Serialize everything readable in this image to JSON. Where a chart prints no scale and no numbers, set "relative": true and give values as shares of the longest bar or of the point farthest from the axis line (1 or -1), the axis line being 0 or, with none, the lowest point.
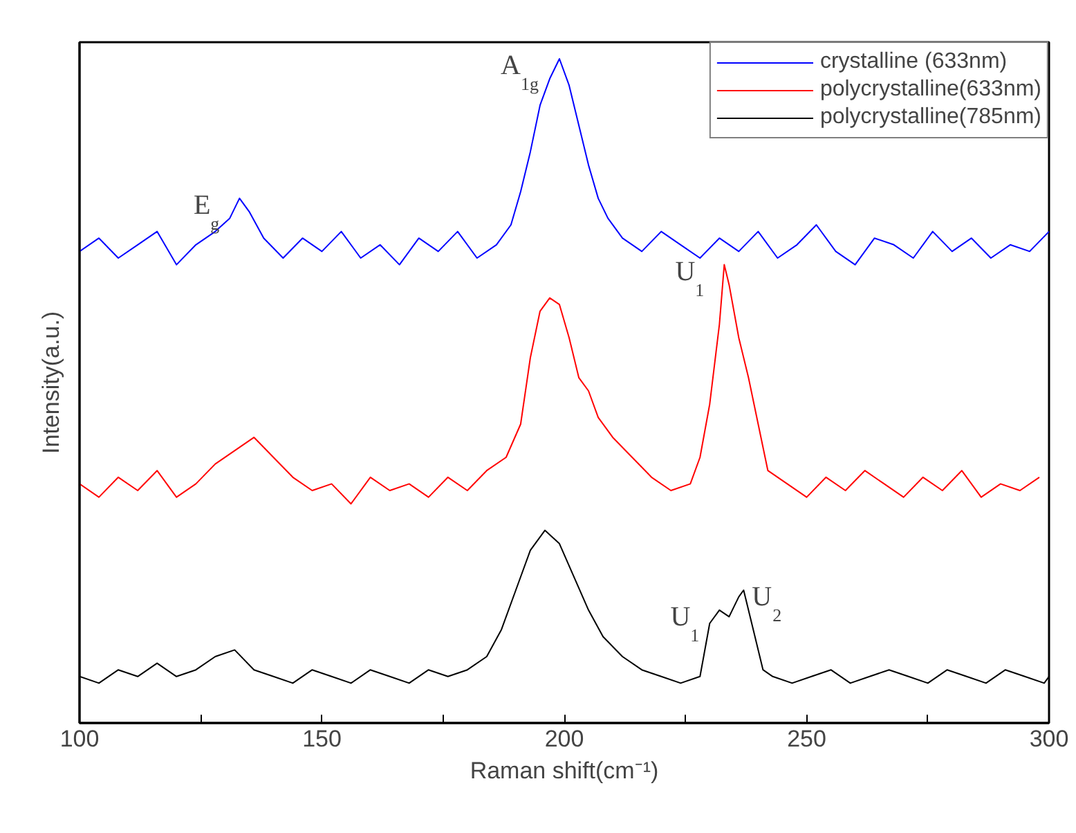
{
  "chart_data": {
    "type": "line",
    "relative": true,
    "xlabel": "Raman shift(cm⁻¹)",
    "ylabel": "Intensity(a.u.)",
    "xlim": [
      100,
      300
    ],
    "xticks": [
      100,
      {
        "value": 125,
        "label": null
      },
      150,
      {
        "value": 175,
        "label": null
      },
      200,
      {
        "value": 225,
        "label": null
      },
      250,
      {
        "value": 275,
        "label": null
      },
      300
    ],
    "grid": false,
    "legend": "top right",
    "line_style": "solid",
    "marker": "none",
    "series": [
      {
        "name": "crystalline (633nm)",
        "color": "#0000ff",
        "x": [
          100,
          104,
          108,
          112,
          116,
          120,
          124,
          128,
          131,
          133,
          135,
          138,
          142,
          146,
          150,
          154,
          158,
          162,
          166,
          170,
          174,
          178,
          182,
          186,
          189,
          191,
          193,
          195,
          197,
          199,
          201,
          203,
          205,
          207,
          209,
          212,
          216,
          220,
          224,
          228,
          232,
          236,
          240,
          244,
          248,
          252,
          256,
          260,
          264,
          268,
          272,
          276,
          280,
          284,
          288,
          292,
          296,
          300
        ],
        "values": [
          0.71,
          0.73,
          0.7,
          0.72,
          0.74,
          0.69,
          0.72,
          0.74,
          0.76,
          0.79,
          0.77,
          0.73,
          0.7,
          0.73,
          0.71,
          0.74,
          0.7,
          0.72,
          0.69,
          0.73,
          0.71,
          0.74,
          0.7,
          0.72,
          0.75,
          0.8,
          0.86,
          0.93,
          0.97,
          1.0,
          0.96,
          0.9,
          0.84,
          0.79,
          0.76,
          0.73,
          0.71,
          0.74,
          0.72,
          0.7,
          0.73,
          0.71,
          0.74,
          0.7,
          0.72,
          0.75,
          0.71,
          0.69,
          0.73,
          0.72,
          0.7,
          0.74,
          0.71,
          0.73,
          0.7,
          0.72,
          0.71,
          0.74
        ]
      },
      {
        "name": "polycrystalline(633nm)",
        "color": "#ff0000",
        "x": [
          100,
          104,
          108,
          112,
          116,
          120,
          124,
          128,
          132,
          136,
          140,
          144,
          148,
          152,
          156,
          160,
          164,
          168,
          172,
          176,
          180,
          184,
          188,
          191,
          193,
          195,
          197,
          199,
          201,
          203,
          205,
          207,
          210,
          214,
          218,
          222,
          226,
          228,
          230,
          232,
          233,
          234,
          236,
          238,
          240,
          242,
          246,
          250,
          254,
          258,
          262,
          266,
          270,
          274,
          278,
          282,
          286,
          290,
          294,
          298
        ],
        "values": [
          0.36,
          0.34,
          0.37,
          0.35,
          0.38,
          0.34,
          0.36,
          0.39,
          0.41,
          0.43,
          0.4,
          0.37,
          0.35,
          0.36,
          0.33,
          0.37,
          0.35,
          0.36,
          0.34,
          0.37,
          0.35,
          0.38,
          0.4,
          0.45,
          0.55,
          0.62,
          0.64,
          0.63,
          0.58,
          0.52,
          0.5,
          0.46,
          0.43,
          0.4,
          0.37,
          0.35,
          0.36,
          0.4,
          0.48,
          0.6,
          0.69,
          0.66,
          0.58,
          0.52,
          0.45,
          0.38,
          0.36,
          0.34,
          0.37,
          0.35,
          0.38,
          0.36,
          0.34,
          0.37,
          0.35,
          0.38,
          0.34,
          0.36,
          0.35,
          0.37
        ]
      },
      {
        "name": "polycrystalline(785nm)",
        "color": "#000000",
        "x": [
          100,
          104,
          108,
          112,
          116,
          120,
          124,
          128,
          132,
          136,
          140,
          144,
          148,
          152,
          156,
          160,
          164,
          168,
          172,
          176,
          180,
          184,
          187,
          190,
          193,
          196,
          199,
          202,
          205,
          208,
          212,
          216,
          220,
          224,
          228,
          230,
          232,
          234,
          236,
          237,
          239,
          241,
          243,
          247,
          251,
          255,
          259,
          263,
          267,
          271,
          275,
          279,
          283,
          287,
          291,
          295,
          299,
          300
        ],
        "values": [
          0.07,
          0.06,
          0.08,
          0.07,
          0.09,
          0.07,
          0.08,
          0.1,
          0.11,
          0.08,
          0.07,
          0.06,
          0.08,
          0.07,
          0.06,
          0.08,
          0.07,
          0.06,
          0.08,
          0.07,
          0.08,
          0.1,
          0.14,
          0.2,
          0.26,
          0.29,
          0.27,
          0.22,
          0.17,
          0.13,
          0.1,
          0.08,
          0.07,
          0.06,
          0.07,
          0.15,
          0.17,
          0.16,
          0.19,
          0.2,
          0.14,
          0.08,
          0.07,
          0.06,
          0.07,
          0.08,
          0.06,
          0.07,
          0.08,
          0.07,
          0.06,
          0.08,
          0.07,
          0.06,
          0.08,
          0.07,
          0.06,
          0.07
        ]
      }
    ],
    "annotations": [
      {
        "text": "E$_{g}$",
        "x": 133,
        "y": 0.79
      },
      {
        "text": "A$_{1g}$",
        "x": 199,
        "y": 1.0
      },
      {
        "text": "U$_{1}$",
        "x": 233,
        "y": 0.69
      },
      {
        "text": "U$_{1}$",
        "x": 232,
        "y": 0.17
      },
      {
        "text": "U$_{2}$",
        "x": 237,
        "y": 0.2
      }
    ]
  }
}
